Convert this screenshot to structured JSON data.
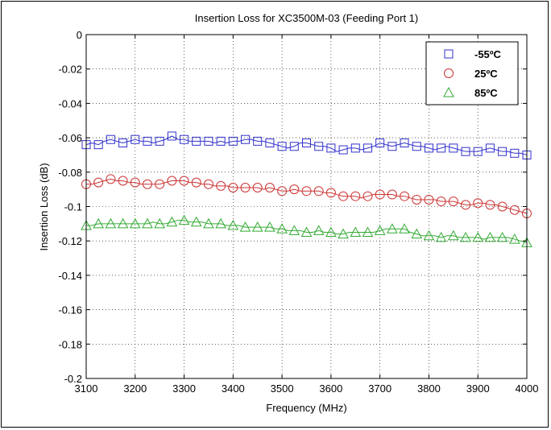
{
  "chart_data": {
    "type": "line",
    "title": "Insertion Loss for XC3500M-03 (Feeding Port 1)",
    "xlabel": "Frequency (MHz)",
    "ylabel": "Insertion Loss (dB)",
    "xlim": [
      3100,
      4000
    ],
    "ylim": [
      -0.2,
      0
    ],
    "xticks": [
      3100,
      3200,
      3300,
      3400,
      3500,
      3600,
      3700,
      3800,
      3900,
      4000
    ],
    "yticks": [
      0,
      -0.02,
      -0.04,
      -0.06,
      -0.08,
      -0.1,
      -0.12,
      -0.14,
      -0.16,
      -0.18,
      -0.2
    ],
    "xtick_labels": [
      "3100",
      "3200",
      "3300",
      "3400",
      "3500",
      "3600",
      "3700",
      "3800",
      "3900",
      "4000"
    ],
    "ytick_labels": [
      "0",
      "-0.02",
      "-0.04",
      "-0.06",
      "-0.08",
      "-0.1",
      "-0.12",
      "-0.14",
      "-0.16",
      "-0.18",
      "-0.2"
    ],
    "grid": true,
    "legend_position": "top-right",
    "series": [
      {
        "name": "-55ºC",
        "color": "#3333cc",
        "marker": "square",
        "x": [
          3100,
          3112,
          3125,
          3137,
          3150,
          3162,
          3175,
          3187,
          3200,
          3212,
          3225,
          3237,
          3250,
          3262,
          3275,
          3287,
          3300,
          3312,
          3325,
          3337,
          3350,
          3362,
          3375,
          3387,
          3400,
          3412,
          3425,
          3437,
          3450,
          3462,
          3475,
          3487,
          3500,
          3512,
          3525,
          3537,
          3550,
          3562,
          3575,
          3587,
          3600,
          3612,
          3625,
          3637,
          3650,
          3662,
          3675,
          3687,
          3700,
          3712,
          3725,
          3737,
          3750,
          3762,
          3775,
          3787,
          3800,
          3812,
          3825,
          3837,
          3850,
          3862,
          3875,
          3887,
          3900,
          3912,
          3925,
          3937,
          3950,
          3962,
          3975,
          3987,
          4000
        ],
        "y": [
          -0.064,
          -0.063,
          -0.064,
          -0.062,
          -0.061,
          -0.062,
          -0.063,
          -0.062,
          -0.061,
          -0.062,
          -0.062,
          -0.063,
          -0.062,
          -0.061,
          -0.059,
          -0.061,
          -0.061,
          -0.062,
          -0.062,
          -0.062,
          -0.062,
          -0.063,
          -0.062,
          -0.063,
          -0.062,
          -0.062,
          -0.061,
          -0.061,
          -0.062,
          -0.062,
          -0.063,
          -0.064,
          -0.065,
          -0.066,
          -0.065,
          -0.063,
          -0.063,
          -0.064,
          -0.065,
          -0.065,
          -0.066,
          -0.068,
          -0.067,
          -0.066,
          -0.066,
          -0.067,
          -0.066,
          -0.065,
          -0.063,
          -0.064,
          -0.065,
          -0.064,
          -0.063,
          -0.064,
          -0.065,
          -0.065,
          -0.066,
          -0.067,
          -0.066,
          -0.065,
          -0.066,
          -0.067,
          -0.068,
          -0.068,
          -0.068,
          -0.067,
          -0.066,
          -0.067,
          -0.068,
          -0.068,
          -0.069,
          -0.069,
          -0.07
        ]
      },
      {
        "name": "25ºC",
        "color": "#cc3333",
        "marker": "circle",
        "x": [
          3100,
          3112,
          3125,
          3137,
          3150,
          3162,
          3175,
          3187,
          3200,
          3212,
          3225,
          3237,
          3250,
          3262,
          3275,
          3287,
          3300,
          3312,
          3325,
          3337,
          3350,
          3362,
          3375,
          3387,
          3400,
          3412,
          3425,
          3437,
          3450,
          3462,
          3475,
          3487,
          3500,
          3512,
          3525,
          3537,
          3550,
          3562,
          3575,
          3587,
          3600,
          3612,
          3625,
          3637,
          3650,
          3662,
          3675,
          3687,
          3700,
          3712,
          3725,
          3737,
          3750,
          3762,
          3775,
          3787,
          3800,
          3812,
          3825,
          3837,
          3850,
          3862,
          3875,
          3887,
          3900,
          3912,
          3925,
          3937,
          3950,
          3962,
          3975,
          3987,
          4000
        ],
        "y": [
          -0.087,
          -0.087,
          -0.086,
          -0.085,
          -0.084,
          -0.085,
          -0.085,
          -0.086,
          -0.086,
          -0.087,
          -0.087,
          -0.087,
          -0.087,
          -0.086,
          -0.085,
          -0.085,
          -0.085,
          -0.086,
          -0.086,
          -0.087,
          -0.087,
          -0.088,
          -0.088,
          -0.088,
          -0.089,
          -0.089,
          -0.089,
          -0.089,
          -0.089,
          -0.09,
          -0.089,
          -0.09,
          -0.091,
          -0.091,
          -0.09,
          -0.091,
          -0.091,
          -0.091,
          -0.091,
          -0.092,
          -0.092,
          -0.093,
          -0.094,
          -0.094,
          -0.094,
          -0.095,
          -0.094,
          -0.093,
          -0.093,
          -0.093,
          -0.093,
          -0.094,
          -0.094,
          -0.095,
          -0.096,
          -0.096,
          -0.096,
          -0.096,
          -0.097,
          -0.097,
          -0.097,
          -0.098,
          -0.099,
          -0.099,
          -0.098,
          -0.098,
          -0.099,
          -0.099,
          -0.1,
          -0.101,
          -0.102,
          -0.103,
          -0.104
        ]
      },
      {
        "name": "85ºC",
        "color": "#33aa33",
        "marker": "triangle",
        "x": [
          3100,
          3112,
          3125,
          3137,
          3150,
          3162,
          3175,
          3187,
          3200,
          3212,
          3225,
          3237,
          3250,
          3262,
          3275,
          3287,
          3300,
          3312,
          3325,
          3337,
          3350,
          3362,
          3375,
          3387,
          3400,
          3412,
          3425,
          3437,
          3450,
          3462,
          3475,
          3487,
          3500,
          3512,
          3525,
          3537,
          3550,
          3562,
          3575,
          3587,
          3600,
          3612,
          3625,
          3637,
          3650,
          3662,
          3675,
          3687,
          3700,
          3712,
          3725,
          3737,
          3750,
          3762,
          3775,
          3787,
          3800,
          3812,
          3825,
          3837,
          3850,
          3862,
          3875,
          3887,
          3900,
          3912,
          3925,
          3937,
          3950,
          3962,
          3975,
          3987,
          4000
        ],
        "y": [
          -0.111,
          -0.111,
          -0.11,
          -0.11,
          -0.11,
          -0.11,
          -0.11,
          -0.11,
          -0.11,
          -0.11,
          -0.11,
          -0.109,
          -0.11,
          -0.11,
          -0.109,
          -0.108,
          -0.108,
          -0.109,
          -0.109,
          -0.109,
          -0.11,
          -0.11,
          -0.11,
          -0.111,
          -0.111,
          -0.111,
          -0.112,
          -0.112,
          -0.112,
          -0.112,
          -0.112,
          -0.113,
          -0.113,
          -0.114,
          -0.114,
          -0.114,
          -0.115,
          -0.115,
          -0.114,
          -0.115,
          -0.115,
          -0.116,
          -0.116,
          -0.115,
          -0.115,
          -0.115,
          -0.115,
          -0.115,
          -0.114,
          -0.113,
          -0.113,
          -0.113,
          -0.113,
          -0.115,
          -0.116,
          -0.117,
          -0.117,
          -0.117,
          -0.118,
          -0.117,
          -0.117,
          -0.118,
          -0.118,
          -0.118,
          -0.118,
          -0.119,
          -0.118,
          -0.118,
          -0.118,
          -0.118,
          -0.119,
          -0.12,
          -0.121
        ]
      }
    ]
  }
}
